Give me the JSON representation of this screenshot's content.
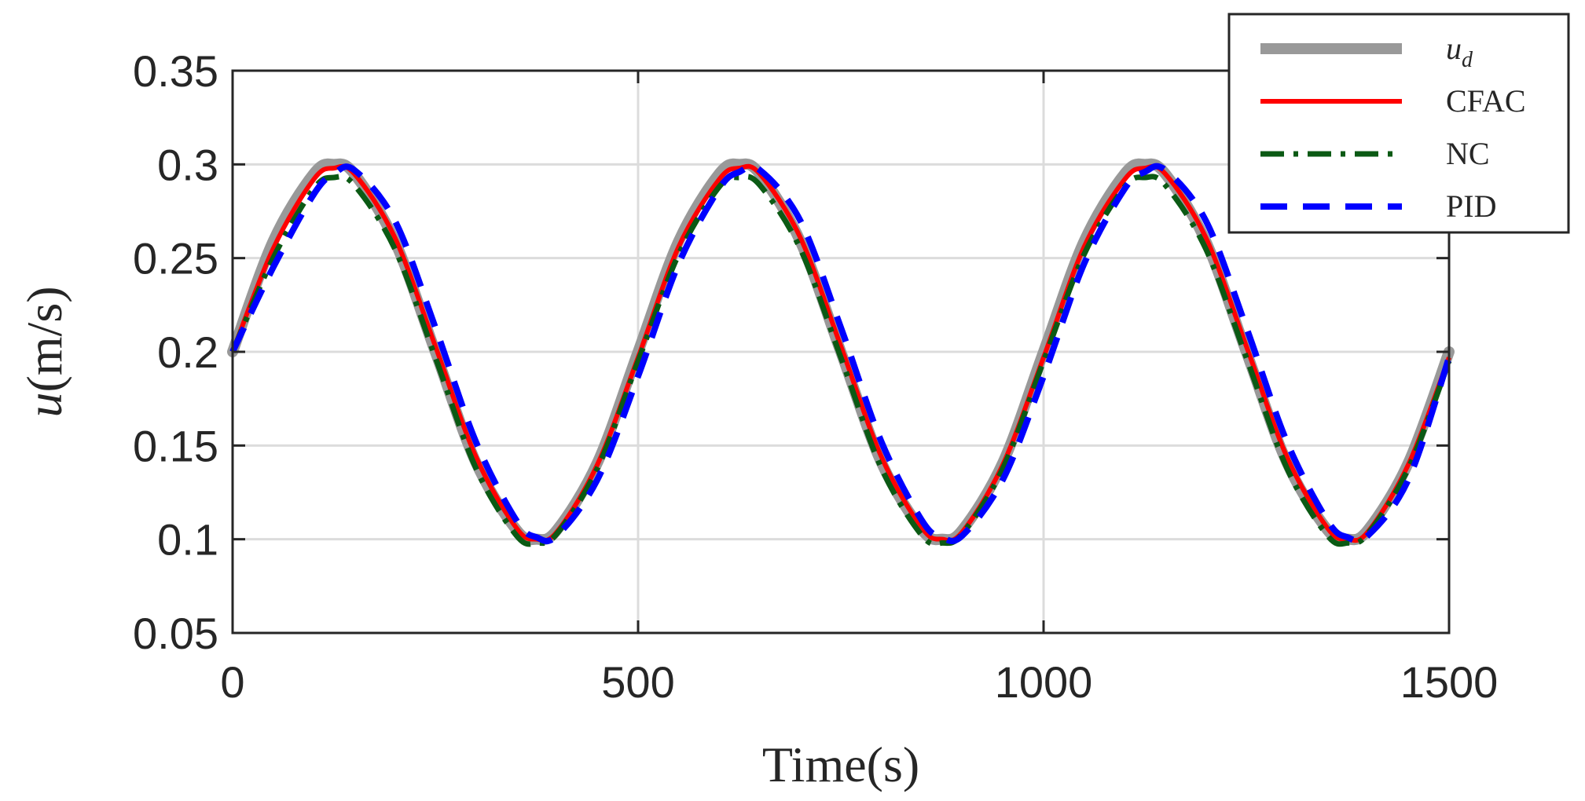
{
  "chart_data": {
    "type": "line",
    "xlabel": "Time(s)",
    "ylabel": {
      "symbol": "u",
      "unit": "(m/s)"
    },
    "xlim": [
      0,
      1500
    ],
    "ylim": [
      0.05,
      0.35
    ],
    "xticks": [
      0,
      500,
      1000,
      1500
    ],
    "xtick_labels": [
      "0",
      "500",
      "1000",
      "1500"
    ],
    "yticks": [
      0.05,
      0.1,
      0.15,
      0.2,
      0.25,
      0.3,
      0.35
    ],
    "ytick_labels": [
      "0.05",
      "0.1",
      "0.15",
      "0.2",
      "0.25",
      "0.3",
      "0.35"
    ],
    "grid": true,
    "legend_position": "top-right",
    "x": [
      0,
      50,
      100,
      125,
      150,
      200,
      250,
      300,
      350,
      375,
      400,
      450,
      500,
      550,
      600,
      625,
      650,
      700,
      750,
      800,
      850,
      875,
      900,
      950,
      1000,
      1050,
      1100,
      1125,
      1150,
      1200,
      1250,
      1300,
      1350,
      1375,
      1400,
      1450,
      1500
    ],
    "series": [
      {
        "name": "u",
        "name_subscript": "d",
        "color": "#999999",
        "dash": "solid",
        "values": [
          0.2,
          0.259,
          0.295,
          0.3,
          0.295,
          0.259,
          0.2,
          0.141,
          0.105,
          0.1,
          0.105,
          0.141,
          0.2,
          0.259,
          0.295,
          0.3,
          0.295,
          0.259,
          0.2,
          0.141,
          0.105,
          0.1,
          0.105,
          0.141,
          0.2,
          0.259,
          0.295,
          0.3,
          0.295,
          0.259,
          0.2,
          0.141,
          0.105,
          0.1,
          0.105,
          0.141,
          0.2
        ]
      },
      {
        "name": "CFAC",
        "color": "#ff0000",
        "dash": "solid",
        "values": [
          0.2,
          0.255,
          0.292,
          0.298,
          0.295,
          0.261,
          0.203,
          0.144,
          0.106,
          0.1,
          0.104,
          0.14,
          0.197,
          0.256,
          0.292,
          0.298,
          0.295,
          0.261,
          0.203,
          0.144,
          0.106,
          0.1,
          0.104,
          0.14,
          0.197,
          0.256,
          0.292,
          0.298,
          0.295,
          0.261,
          0.203,
          0.144,
          0.106,
          0.1,
          0.104,
          0.14,
          0.197
        ]
      },
      {
        "name": "NC",
        "color": "#0b5a14",
        "dash": "dashdot",
        "values": [
          0.2,
          0.25,
          0.287,
          0.293,
          0.289,
          0.255,
          0.197,
          0.138,
          0.102,
          0.098,
          0.103,
          0.138,
          0.195,
          0.252,
          0.288,
          0.293,
          0.289,
          0.255,
          0.197,
          0.138,
          0.102,
          0.098,
          0.103,
          0.138,
          0.195,
          0.252,
          0.288,
          0.293,
          0.289,
          0.255,
          0.197,
          0.138,
          0.102,
          0.098,
          0.103,
          0.138,
          0.195
        ]
      },
      {
        "name": "PID",
        "color": "#0000ff",
        "dash": "dashed",
        "values": [
          0.2,
          0.245,
          0.284,
          0.295,
          0.297,
          0.27,
          0.213,
          0.152,
          0.11,
          0.101,
          0.102,
          0.132,
          0.187,
          0.247,
          0.287,
          0.296,
          0.297,
          0.27,
          0.213,
          0.152,
          0.11,
          0.101,
          0.102,
          0.132,
          0.187,
          0.247,
          0.287,
          0.296,
          0.297,
          0.27,
          0.213,
          0.152,
          0.11,
          0.101,
          0.102,
          0.132,
          0.197
        ]
      }
    ]
  }
}
